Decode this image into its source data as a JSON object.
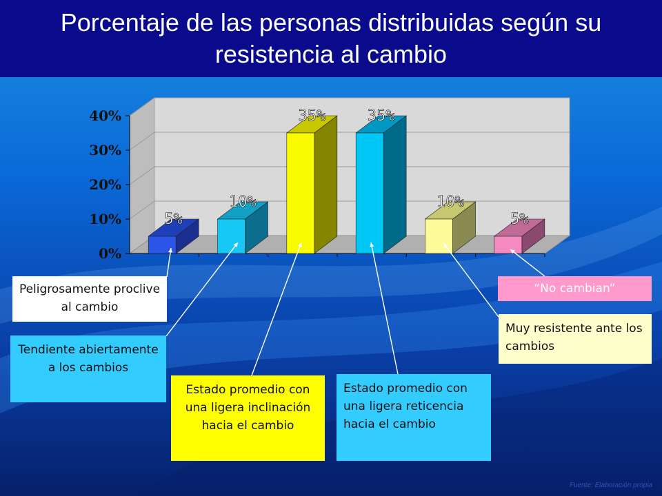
{
  "title": "Porcentaje de las personas distribuidas según su resistencia al cambio",
  "chart_data": {
    "type": "bar",
    "categories": [
      "Peligrosamente proclive al cambio",
      "Tendiente abiertamente a los cambios",
      "Estado promedio con una ligera inclinación hacia el cambio",
      "Estado promedio con una ligera reticencia hacia el cambio",
      "Muy resistente ante los cambios",
      "“No cambian”"
    ],
    "values": [
      5,
      10,
      35,
      35,
      10,
      5
    ],
    "data_labels": [
      "5%",
      "10%",
      "35%",
      "35%",
      "10%",
      "5%"
    ],
    "ytick_labels": [
      "0%",
      "10%",
      "20%",
      "30%",
      "40%"
    ],
    "ylim": [
      0,
      40
    ],
    "grid": true,
    "bar_colors": [
      "#2a55e6",
      "#18c8f4",
      "#fbfb00",
      "#00c8f6",
      "#fbfb9a",
      "#f48ac0"
    ],
    "bar_side_colors": [
      "#1a2f8e",
      "#0c6e8c",
      "#858500",
      "#006a8a",
      "#8a8a52",
      "#8a4a70"
    ],
    "bar_top_colors": [
      "#1f3fba",
      "#12a0c4",
      "#c8c800",
      "#0098c4",
      "#c8c870",
      "#c06a98"
    ]
  },
  "callouts": {
    "c1": "Peligrosamente proclive al cambio",
    "c2": "Tendiente abiertamente a los cambios",
    "c3": "Estado promedio con una ligera inclinación hacia el cambio",
    "c4": "Estado promedio con una ligera reticencia hacia el cambio",
    "c5": "Muy resistente ante los cambios",
    "c6": "“No cambian”"
  },
  "callout_colors": {
    "c1": "#ffffff",
    "c2": "#33ccff",
    "c3": "#ffff00",
    "c4": "#33ccff",
    "c5": "#ffffcc",
    "c6": "#ff99cc"
  },
  "source": "Fuente: Elaboración propia"
}
